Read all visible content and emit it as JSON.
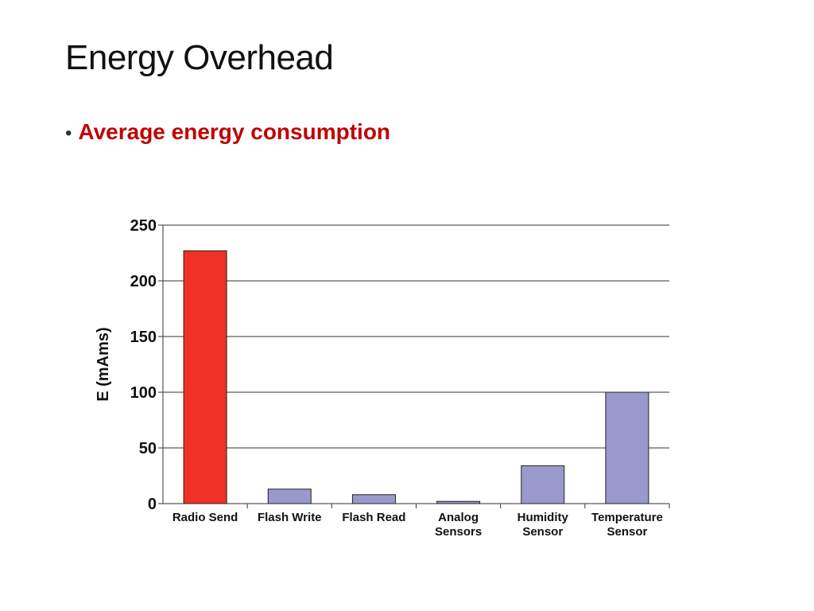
{
  "slide": {
    "title": "Energy Overhead",
    "bullet": "Average energy consumption"
  },
  "chart_data": {
    "type": "bar",
    "title": "",
    "xlabel": "",
    "ylabel": "E (mAms)",
    "ylim": [
      0,
      250
    ],
    "yticks": [
      0,
      50,
      100,
      150,
      200,
      250
    ],
    "grid": true,
    "categories": [
      [
        "Radio Send"
      ],
      [
        "Flash Write"
      ],
      [
        "Flash Read"
      ],
      [
        "Analog",
        "Sensors"
      ],
      [
        "Humidity",
        "Sensor"
      ],
      [
        "Temperature",
        "Sensor"
      ]
    ],
    "values": [
      227,
      13,
      8,
      2,
      34,
      100
    ],
    "colors": [
      "#ee3124",
      "#9999cc",
      "#9999cc",
      "#9999cc",
      "#9999cc",
      "#9999cc"
    ]
  }
}
